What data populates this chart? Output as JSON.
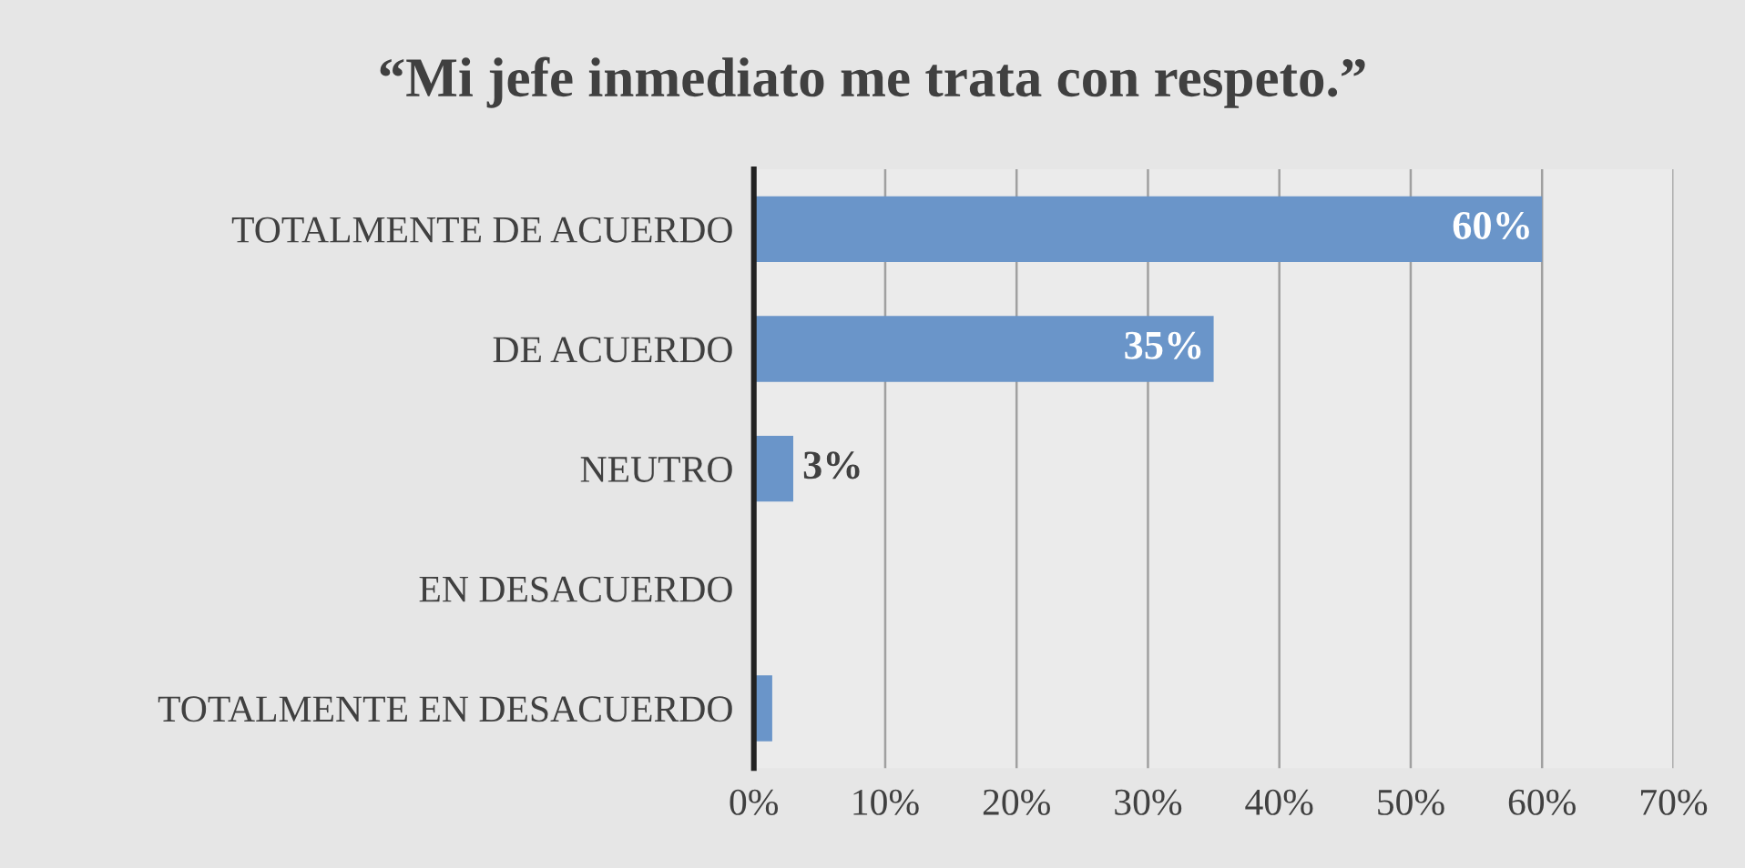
{
  "chart_data": {
    "type": "bar",
    "orientation": "horizontal",
    "title": "“Mi jefe inmediato me trata con respeto.”",
    "categories": [
      "TOTALMENTE DE ACUERDO",
      "DE ACUERDO",
      "NEUTRO",
      "EN DESACUERDO",
      "TOTALMENTE EN DESACUERDO"
    ],
    "values": [
      60,
      35,
      3,
      0,
      1.4
    ],
    "value_labels": [
      "60%",
      "35%",
      "3%",
      null,
      null
    ],
    "color": "#6a95c9",
    "xlim": [
      0,
      70
    ],
    "xticks": [
      {
        "value": 0,
        "label": "0%"
      },
      {
        "value": 10,
        "label": "10%"
      },
      {
        "value": 20,
        "label": "20%"
      },
      {
        "value": 30,
        "label": "30%"
      },
      {
        "value": 40,
        "label": "40%"
      },
      {
        "value": 50,
        "label": "50%"
      },
      {
        "value": 60,
        "label": "60%"
      },
      {
        "value": 70,
        "label": "70%"
      }
    ],
    "grid": "x",
    "legend": false
  }
}
